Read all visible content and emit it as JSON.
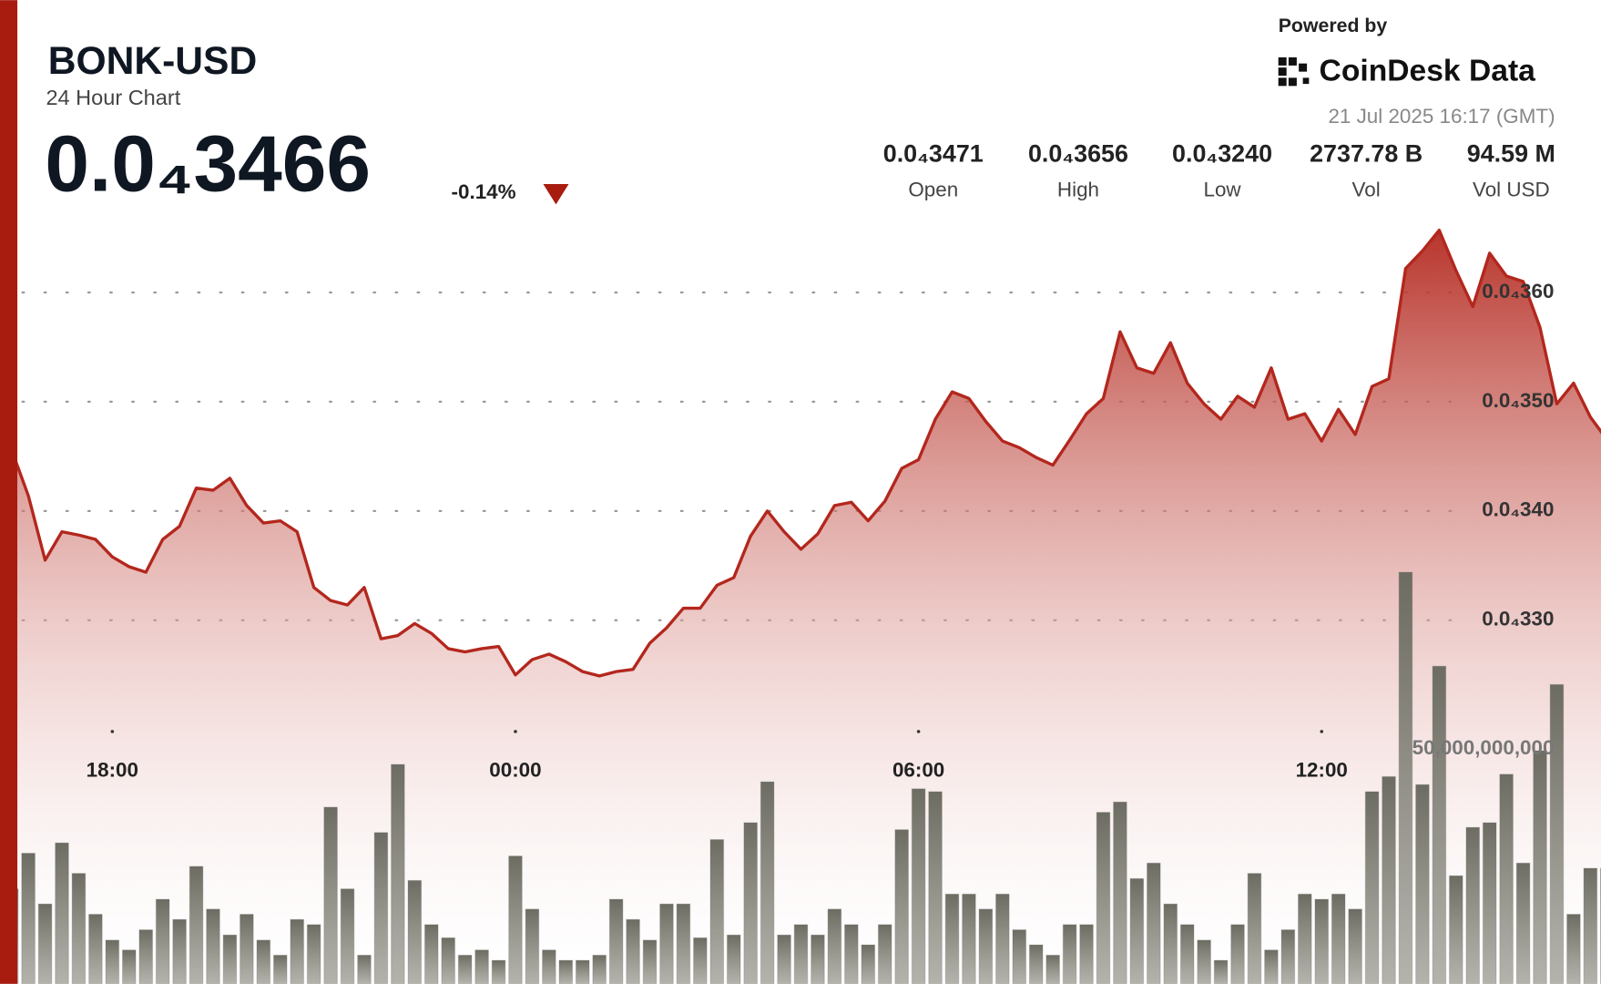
{
  "chart_data": {
    "type": "area",
    "title": "BONK-USD",
    "subtitle": "24 Hour Chart",
    "price": "0.0₄3466",
    "change": "-0.14%",
    "powered_by": "Powered by",
    "brand": "CoinDesk Data",
    "timestamp": "21 Jul 2025 16:17 (GMT)",
    "stats": [
      {
        "value": "0.0₄3471",
        "label": "Open"
      },
      {
        "value": "0.0₄3656",
        "label": "High"
      },
      {
        "value": "0.0₄3240",
        "label": "Low"
      },
      {
        "value": "2737.78 B",
        "label": "Vol"
      },
      {
        "value": "94.59 M",
        "label": "Vol USD"
      }
    ],
    "categories": [
      null,
      null,
      null,
      null,
      null,
      null,
      "18:00",
      null,
      null,
      null,
      null,
      null,
      null,
      null,
      null,
      null,
      null,
      null,
      null,
      null,
      null,
      null,
      null,
      null,
      null,
      null,
      null,
      null,
      null,
      null,
      "00:00",
      null,
      null,
      null,
      null,
      null,
      null,
      null,
      null,
      null,
      null,
      null,
      null,
      null,
      null,
      null,
      null,
      null,
      null,
      null,
      null,
      null,
      null,
      null,
      "06:00",
      null,
      null,
      null,
      null,
      null,
      null,
      null,
      null,
      null,
      null,
      null,
      null,
      null,
      null,
      null,
      null,
      null,
      null,
      null,
      null,
      null,
      null,
      null,
      "12:00",
      null,
      null,
      null,
      null,
      null,
      null,
      null,
      null,
      null,
      null,
      null,
      null,
      null,
      null,
      null,
      null,
      null
    ],
    "values": [
      3.456e-05,
      3.414e-05,
      3.355e-05,
      3.381e-05,
      3.378e-05,
      3.374e-05,
      3.358e-05,
      3.349e-05,
      3.344e-05,
      3.374e-05,
      3.386e-05,
      3.421e-05,
      3.419e-05,
      3.43e-05,
      3.405e-05,
      3.389e-05,
      3.391e-05,
      3.381e-05,
      3.33e-05,
      3.318e-05,
      3.314e-05,
      3.33e-05,
      3.283e-05,
      3.286e-05,
      3.297e-05,
      3.288e-05,
      3.274e-05,
      3.271e-05,
      3.274e-05,
      3.276e-05,
      3.25e-05,
      3.264e-05,
      3.269e-05,
      3.262e-05,
      3.253e-05,
      3.249e-05,
      3.253e-05,
      3.255e-05,
      3.279e-05,
      3.293e-05,
      3.311e-05,
      3.311e-05,
      3.332e-05,
      3.339e-05,
      3.377e-05,
      3.4e-05,
      3.381e-05,
      3.365e-05,
      3.379e-05,
      3.405e-05,
      3.408e-05,
      3.391e-05,
      3.409e-05,
      3.439e-05,
      3.447e-05,
      3.484e-05,
      3.509e-05,
      3.503e-05,
      3.482e-05,
      3.464e-05,
      3.458e-05,
      3.449e-05,
      3.442e-05,
      3.465e-05,
      3.489e-05,
      3.503e-05,
      3.564e-05,
      3.531e-05,
      3.526e-05,
      3.554e-05,
      3.517e-05,
      3.498e-05,
      3.484e-05,
      3.505e-05,
      3.495e-05,
      3.531e-05,
      3.484e-05,
      3.489e-05,
      3.464e-05,
      3.493e-05,
      3.47e-05,
      3.514e-05,
      3.521e-05,
      3.622e-05,
      3.638e-05,
      3.657e-05,
      3.62e-05,
      3.587e-05,
      3.636e-05,
      3.615e-05,
      3.61e-05,
      3.568e-05,
      3.498e-05,
      3.517e-05,
      3.486e-05,
      3.465e-05
    ],
    "color": "#b3271d",
    "ylim": [
      2.97e-05,
      3.66e-05
    ],
    "yticks": [
      {
        "value": 3.3e-05,
        "label": "0.0₄330"
      },
      {
        "value": 3.4e-05,
        "label": "0.0₄340"
      },
      {
        "value": 3.5e-05,
        "label": "0.0₄350"
      },
      {
        "value": 3.6e-05,
        "label": "0.0₄360"
      }
    ],
    "grid": true,
    "volume": {
      "axis": "y2",
      "color": "#6c6c62",
      "values": [
        20200000000,
        27800000000,
        17000000000,
        30000000000,
        23500000000,
        14800000000,
        9300000000,
        7200000000,
        11500000000,
        18000000000,
        13700000000,
        25000000000,
        15900000000,
        10400000000,
        14800000000,
        9300000000,
        6100000000,
        13700000000,
        12600000000,
        37600000000,
        20200000000,
        6100000000,
        32200000000,
        46700000000,
        22000000000,
        12600000000,
        9800000000,
        6100000000,
        7200000000,
        5000000000,
        27200000000,
        15900000000,
        7200000000,
        5000000000,
        5000000000,
        6100000000,
        18000000000,
        13700000000,
        9300000000,
        17000000000,
        17000000000,
        9800000000,
        30700000000,
        10400000000,
        34300000000,
        43000000000,
        10400000000,
        12600000000,
        10400000000,
        15900000000,
        12600000000,
        8300000000,
        12600000000,
        32800000000,
        41500000000,
        40900000000,
        19100000000,
        19100000000,
        15900000000,
        19100000000,
        11500000000,
        8300000000,
        6100000000,
        12600000000,
        12600000000,
        36500000000,
        38700000000,
        22400000000,
        25700000000,
        17000000000,
        12600000000,
        9300000000,
        5000000000,
        12600000000,
        23500000000,
        7200000000,
        11500000000,
        19100000000,
        18000000000,
        19100000000,
        15900000000,
        40900000000,
        44100000000,
        87600000000,
        42400000000,
        67600000000,
        23000000000,
        33300000000,
        34300000000,
        44600000000,
        25700000000,
        49600000000,
        63700000000,
        14800000000,
        24600000000,
        24600000000
      ]
    },
    "y2lim": [
      0,
      200000000000
    ],
    "y2ticks": [
      {
        "value": 50000000000,
        "label": "50,000,000,000"
      }
    ]
  }
}
